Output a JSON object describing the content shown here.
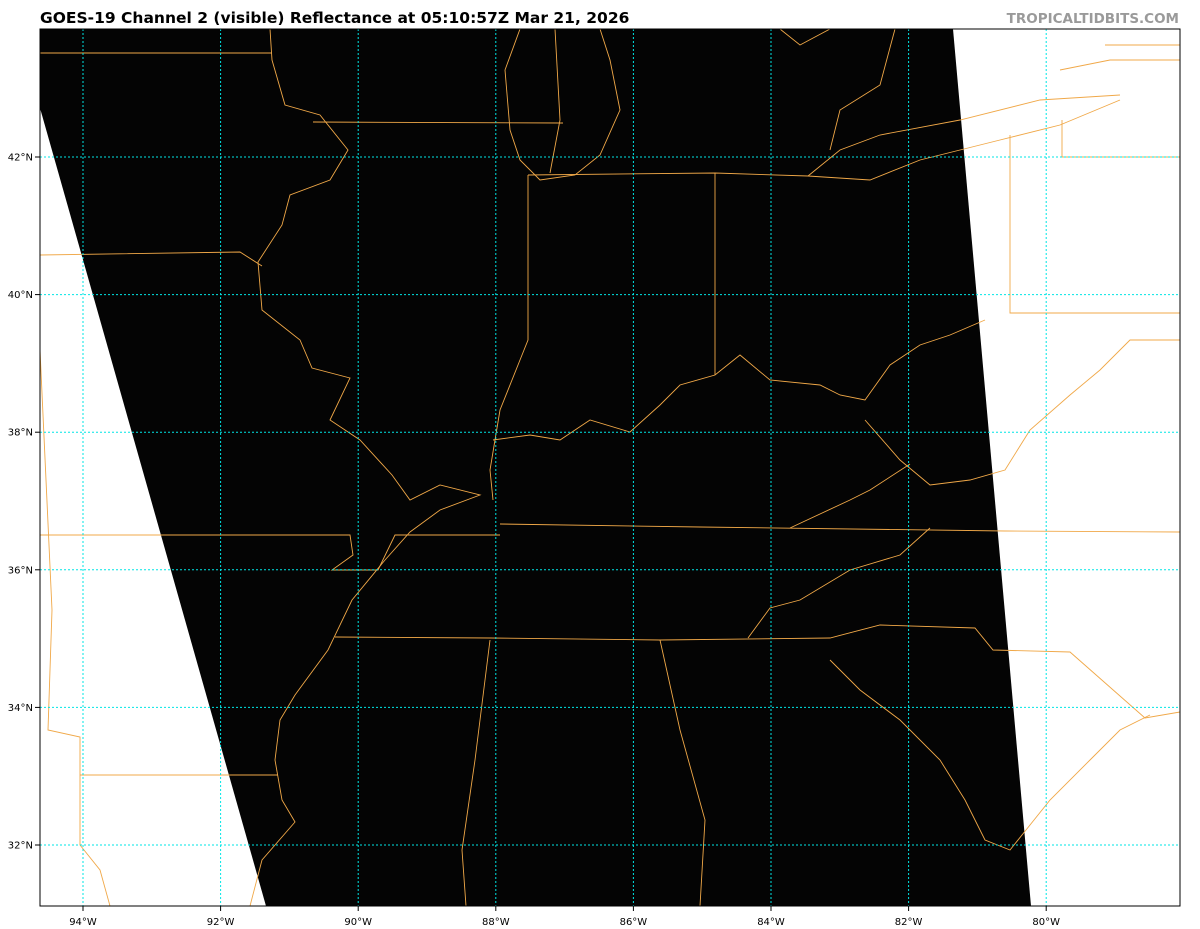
{
  "title": "GOES-19 Channel 2 (visible) Reflectance at 05:10:57Z Mar 21, 2026",
  "watermark": "TROPICALTIDBITS.COM",
  "map": {
    "extent": {
      "lon": [
        -94.6,
        -78.0
      ],
      "lat": [
        31.1,
        43.8
      ]
    },
    "lat_labels": [
      {
        "lat": 42,
        "label": "42°N"
      },
      {
        "lat": 40,
        "label": "40°N"
      },
      {
        "lat": 38,
        "label": "38°N"
      },
      {
        "lat": 36,
        "label": "36°N"
      },
      {
        "lat": 34,
        "label": "34°N"
      },
      {
        "lat": 32,
        "label": "32°N"
      }
    ],
    "lon_labels": [
      {
        "lon": -94,
        "label": "94°W"
      },
      {
        "lon": -92,
        "label": "92°W"
      },
      {
        "lon": -90,
        "label": "90°W"
      },
      {
        "lon": -88,
        "label": "88°W"
      },
      {
        "lon": -86,
        "label": "86°W"
      },
      {
        "lon": -84,
        "label": "84°W"
      },
      {
        "lon": -82,
        "label": "82°W"
      },
      {
        "lon": -80,
        "label": "80°W"
      }
    ],
    "colors": {
      "imagery": "#000000",
      "borders": "#f0a848",
      "gridlines": "#00e5e5",
      "background": "#ffffff"
    }
  }
}
